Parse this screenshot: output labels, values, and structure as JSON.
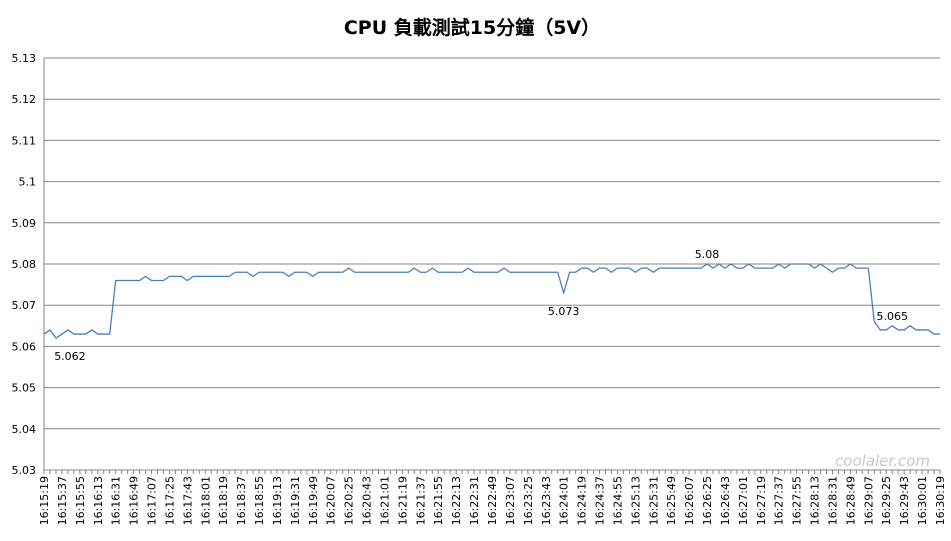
{
  "chart_data": {
    "type": "line",
    "title": "CPU 負載測試15分鐘（5V）",
    "categories": [
      "16:15:19",
      null,
      null,
      "16:15:37",
      null,
      null,
      "16:15:55",
      null,
      null,
      "16:16:13",
      null,
      null,
      "16:16:31",
      null,
      null,
      "16:16:49",
      null,
      null,
      "16:17:07",
      null,
      null,
      "16:17:25",
      null,
      null,
      "16:17:43",
      null,
      null,
      "16:18:01",
      null,
      null,
      "16:18:19",
      null,
      null,
      "16:18:37",
      null,
      null,
      "16:18:55",
      null,
      null,
      "16:19:13",
      null,
      null,
      "16:19:31",
      null,
      null,
      "16:19:49",
      null,
      null,
      "16:20:07",
      null,
      null,
      "16:20:25",
      null,
      null,
      "16:20:43",
      null,
      null,
      "16:21:01",
      null,
      null,
      "16:21:19",
      null,
      null,
      "16:21:37",
      null,
      null,
      "16:21:55",
      null,
      null,
      "16:22:13",
      null,
      null,
      "16:22:31",
      null,
      null,
      "16:22:49",
      null,
      null,
      "16:23:07",
      null,
      null,
      "16:23:25",
      null,
      null,
      "16:23:43",
      null,
      null,
      "16:24:01",
      null,
      null,
      "16:24:19",
      null,
      null,
      "16:24:37",
      null,
      null,
      "16:24:55",
      null,
      null,
      "16:25:13",
      null,
      null,
      "16:25:31",
      null,
      null,
      "16:25:49",
      null,
      null,
      "16:26:07",
      null,
      null,
      "16:26:25",
      null,
      null,
      "16:26:43",
      null,
      null,
      "16:27:01",
      null,
      null,
      "16:27:19",
      null,
      null,
      "16:27:37",
      null,
      null,
      "16:27:55",
      null,
      null,
      "16:28:13",
      null,
      null,
      "16:28:31",
      null,
      null,
      "16:28:49",
      null,
      null,
      "16:29:07",
      null,
      null,
      "16:29:25",
      null,
      null,
      "16:29:43",
      null,
      null,
      "16:30:01",
      null,
      null,
      "16:30:19"
    ],
    "series": [
      {
        "color": "#4a7ebb",
        "values": [
          5.063,
          5.064,
          5.062,
          5.063,
          5.064,
          5.063,
          5.063,
          5.063,
          5.064,
          5.063,
          5.063,
          5.063,
          5.076,
          5.076,
          5.076,
          5.076,
          5.076,
          5.077,
          5.076,
          5.076,
          5.076,
          5.077,
          5.077,
          5.077,
          5.076,
          5.077,
          5.077,
          5.077,
          5.077,
          5.077,
          5.077,
          5.077,
          5.078,
          5.078,
          5.078,
          5.077,
          5.078,
          5.078,
          5.078,
          5.078,
          5.078,
          5.077,
          5.078,
          5.078,
          5.078,
          5.077,
          5.078,
          5.078,
          5.078,
          5.078,
          5.078,
          5.079,
          5.078,
          5.078,
          5.078,
          5.078,
          5.078,
          5.078,
          5.078,
          5.078,
          5.078,
          5.078,
          5.079,
          5.078,
          5.078,
          5.079,
          5.078,
          5.078,
          5.078,
          5.078,
          5.078,
          5.079,
          5.078,
          5.078,
          5.078,
          5.078,
          5.078,
          5.079,
          5.078,
          5.078,
          5.078,
          5.078,
          5.078,
          5.078,
          5.078,
          5.078,
          5.078,
          5.073,
          5.078,
          5.078,
          5.079,
          5.079,
          5.078,
          5.079,
          5.079,
          5.078,
          5.079,
          5.079,
          5.079,
          5.078,
          5.079,
          5.079,
          5.078,
          5.079,
          5.079,
          5.079,
          5.079,
          5.079,
          5.079,
          5.079,
          5.079,
          5.08,
          5.079,
          5.08,
          5.079,
          5.08,
          5.079,
          5.079,
          5.08,
          5.079,
          5.079,
          5.079,
          5.079,
          5.08,
          5.079,
          5.08,
          5.08,
          5.08,
          5.08,
          5.079,
          5.08,
          5.079,
          5.078,
          5.079,
          5.079,
          5.08,
          5.079,
          5.079,
          5.079,
          5.066,
          5.064,
          5.064,
          5.065,
          5.064,
          5.064,
          5.065,
          5.064,
          5.064,
          5.064,
          5.063,
          5.063
        ],
        "value_labels": [
          null,
          null,
          "5.062",
          null,
          null,
          null,
          null,
          null,
          null,
          null,
          null,
          null,
          null,
          null,
          null,
          null,
          null,
          null,
          null,
          null,
          null,
          null,
          null,
          null,
          null,
          null,
          null,
          null,
          null,
          null,
          null,
          null,
          null,
          null,
          null,
          null,
          null,
          null,
          null,
          null,
          null,
          null,
          null,
          null,
          null,
          null,
          null,
          null,
          null,
          null,
          null,
          null,
          null,
          null,
          null,
          null,
          null,
          null,
          null,
          null,
          null,
          null,
          null,
          null,
          null,
          null,
          null,
          null,
          null,
          null,
          null,
          null,
          null,
          null,
          null,
          null,
          null,
          null,
          null,
          null,
          null,
          null,
          null,
          null,
          null,
          null,
          null,
          "5.073",
          null,
          null,
          null,
          null,
          null,
          null,
          null,
          null,
          null,
          null,
          null,
          null,
          null,
          null,
          null,
          null,
          null,
          null,
          null,
          null,
          null,
          null,
          null,
          "5.08",
          null,
          null,
          null,
          null,
          null,
          null,
          null,
          null,
          null,
          null,
          null,
          null,
          null,
          null,
          null,
          null,
          null,
          null,
          null,
          null,
          null,
          null,
          null,
          null,
          null,
          null,
          null,
          null,
          null,
          null,
          "5.065",
          null,
          null,
          null,
          null,
          null,
          null,
          null,
          null
        ]
      }
    ],
    "ylim": [
      5.03,
      5.13
    ],
    "yticks": [
      5.03,
      5.04,
      5.05,
      5.06,
      5.07,
      5.08,
      5.09,
      5.1,
      5.11,
      5.12,
      5.13
    ],
    "grid": true,
    "watermark": "coolaler.com"
  }
}
